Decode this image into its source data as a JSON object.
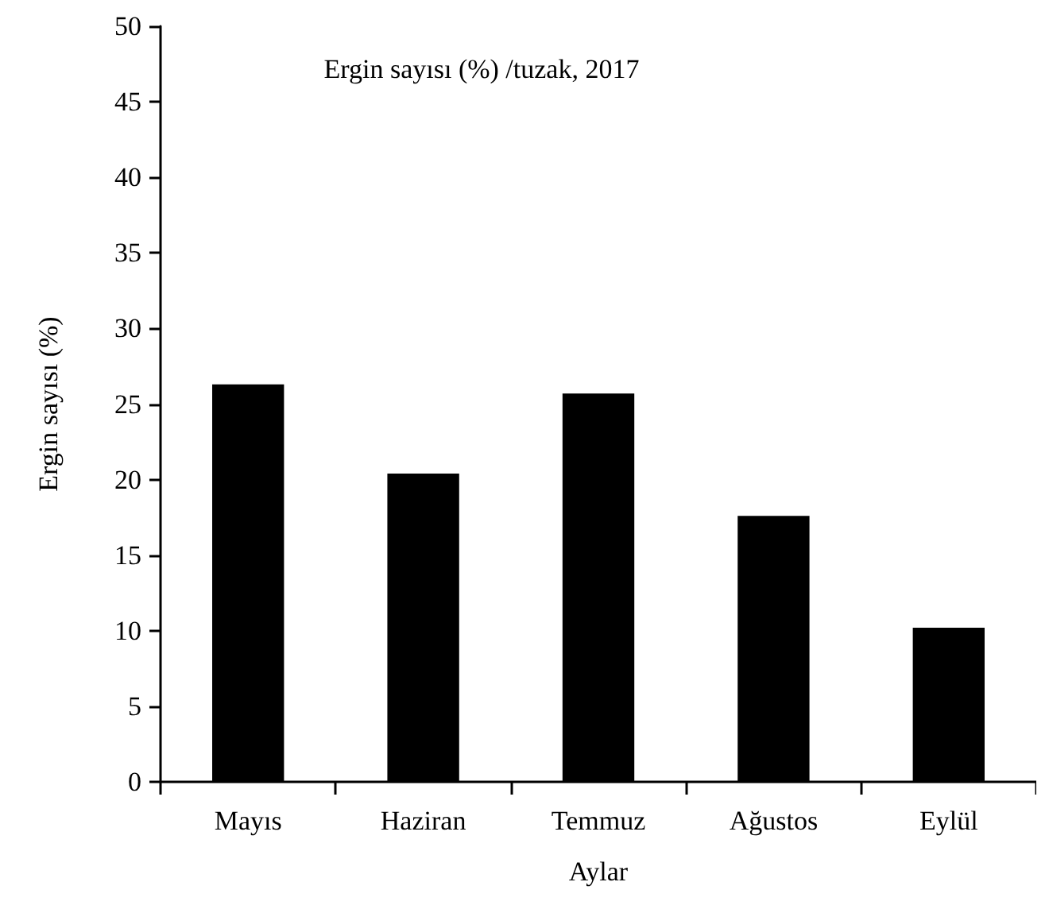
{
  "chart_data": {
    "type": "bar",
    "title": "Ergin sayısı (%) /tuzak, 2017",
    "xlabel": "Aylar",
    "ylabel": "Ergin sayısı (%)",
    "categories": [
      "Mayıs",
      "Haziran",
      "Temmuz",
      "Ağustos",
      "Eylül"
    ],
    "values": [
      26.3,
      20.4,
      25.7,
      17.6,
      10.2
    ],
    "color": "#000000",
    "ylim": [
      0,
      50
    ],
    "yticks": [
      0,
      5,
      10,
      15,
      20,
      25,
      30,
      35,
      40,
      45,
      50
    ],
    "grid": false
  }
}
